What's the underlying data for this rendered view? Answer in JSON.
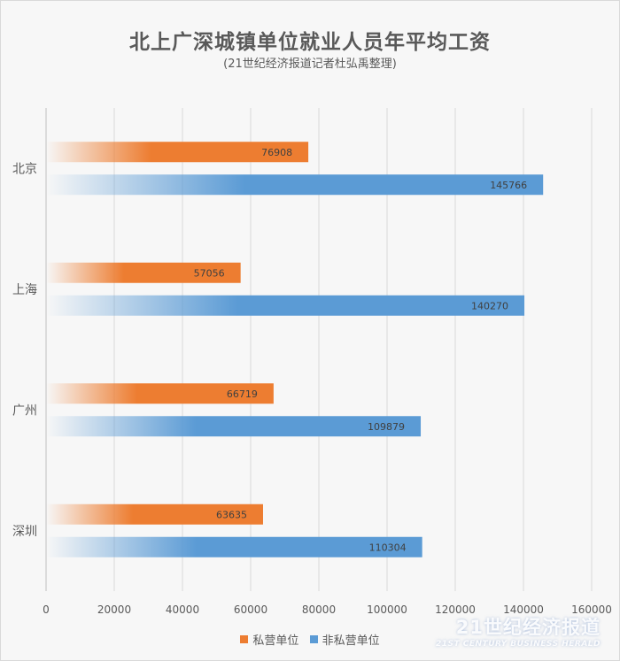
{
  "chart_data": {
    "type": "bar",
    "orientation": "horizontal",
    "title": "北上广深城镇单位就业人员年平均工资",
    "subtitle": "(21世纪经济报道记者杜弘禹整理)",
    "categories": [
      "北京",
      "上海",
      "广州",
      "深圳"
    ],
    "series": [
      {
        "name": "私营单位",
        "values": [
          76908,
          57056,
          66719,
          63635
        ],
        "color": "#ed7d31"
      },
      {
        "name": "非私营单位",
        "values": [
          145766,
          140270,
          109879,
          110304
        ],
        "color": "#5b9bd5"
      }
    ],
    "xlim": [
      0,
      160000
    ],
    "xticks": [
      0,
      20000,
      40000,
      60000,
      80000,
      100000,
      120000,
      140000,
      160000
    ],
    "grid": true,
    "legend": "bottom"
  },
  "watermark": {
    "main": "21世纪经济报道",
    "sub": "21ST CENTURY BUSINESS HERALD"
  }
}
